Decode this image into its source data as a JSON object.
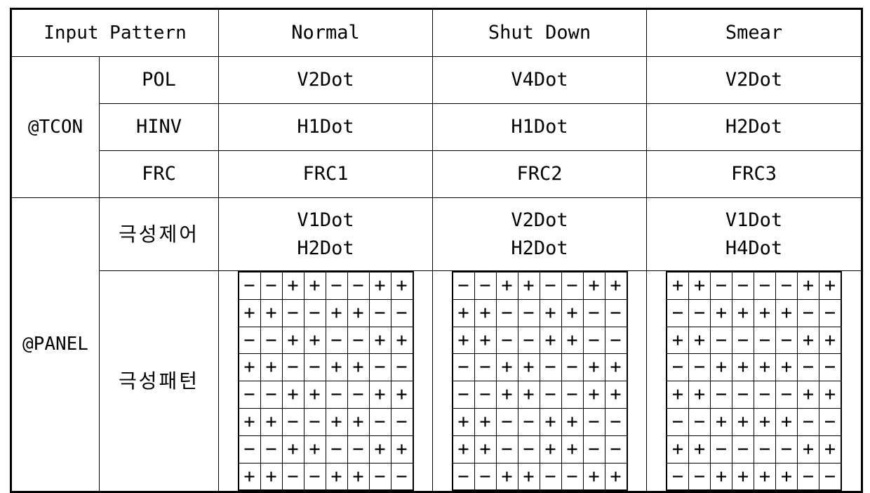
{
  "header": {
    "input_pattern": "Input Pattern",
    "normal": "Normal",
    "shut_down": "Shut Down",
    "smear": "Smear"
  },
  "tcon": {
    "group": "@TCON",
    "rows": [
      {
        "label": "POL",
        "normal": "V2Dot",
        "shut_down": "V4Dot",
        "smear": "V2Dot"
      },
      {
        "label": "HINV",
        "normal": "H1Dot",
        "shut_down": "H1Dot",
        "smear": "H2Dot"
      },
      {
        "label": "FRC",
        "normal": "FRC1",
        "shut_down": "FRC2",
        "smear": "FRC3"
      }
    ]
  },
  "panel": {
    "group": "@PANEL",
    "polarity_control": {
      "label": "극성제어",
      "normal": [
        "V1Dot",
        "H2Dot"
      ],
      "shut_down": [
        "V2Dot",
        "H2Dot"
      ],
      "smear": [
        "V1Dot",
        "H4Dot"
      ]
    },
    "polarity_pattern": {
      "label": "극성패턴",
      "normal": [
        "−−++−−++",
        "++−−++−−",
        "−−++−−++",
        "++−−++−−",
        "−−++−−++",
        "++−−++−−",
        "−−++−−++",
        "++−−++−−"
      ],
      "shut_down": [
        "−−++−−++",
        "++−−++−−",
        "++−−++−−",
        "−−++−−++",
        "−−++−−++",
        "++−−++−−",
        "++−−++−−",
        "−−++−−++"
      ],
      "smear": [
        "++−−−−++",
        "−−++++−−",
        "++−−−−++",
        "−−++++−−",
        "++−−−−++",
        "−−++++−−",
        "++−−−−++",
        "−−++++−−"
      ]
    }
  }
}
